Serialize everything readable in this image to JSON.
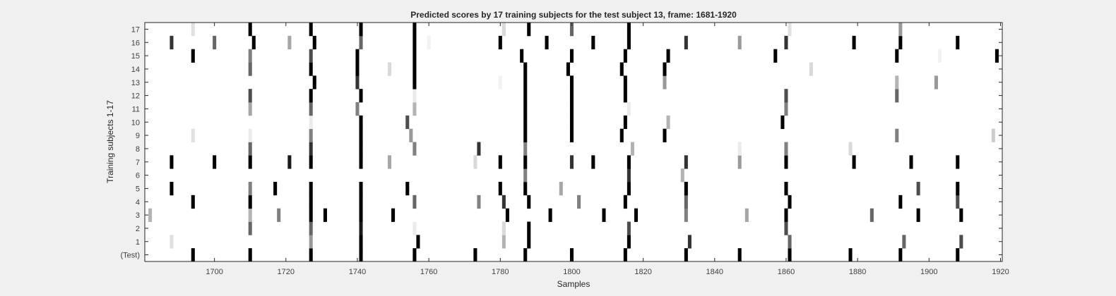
{
  "chart_data": {
    "type": "heatmap",
    "title": "Predicted scores by 17 training subjects for the test subject 13, frame: 1681-1920",
    "xlabel": "Samples",
    "ylabel": "Training subjects 1-17",
    "xlim": [
      1681,
      1920
    ],
    "x_ticks": [
      1700,
      1720,
      1740,
      1760,
      1780,
      1800,
      1820,
      1840,
      1860,
      1880,
      1900,
      1920
    ],
    "rows": [
      "(Test)",
      "1",
      "2",
      "3",
      "4",
      "5",
      "6",
      "7",
      "8",
      "9",
      "10",
      "11",
      "12",
      "13",
      "14",
      "15",
      "16",
      "17"
    ],
    "colormap": "gray (white = 0, black = 1)",
    "grid": false,
    "marks": [
      {
        "row": "(Test)",
        "values": [
          [
            1694,
            1
          ],
          [
            1710,
            1
          ],
          [
            1727,
            1
          ],
          [
            1741,
            1
          ],
          [
            1756,
            1
          ],
          [
            1773,
            1
          ],
          [
            1787,
            1
          ],
          [
            1800,
            1
          ],
          [
            1815,
            1
          ],
          [
            1832,
            1
          ],
          [
            1847,
            1
          ],
          [
            1861,
            1
          ],
          [
            1878,
            1
          ],
          [
            1892,
            1
          ],
          [
            1908,
            1
          ]
        ]
      },
      {
        "row": "1",
        "values": [
          [
            1688,
            0.12
          ],
          [
            1727,
            0.4
          ],
          [
            1741,
            1
          ],
          [
            1757,
            1
          ],
          [
            1781,
            0.3
          ],
          [
            1788,
            1
          ],
          [
            1816,
            1
          ],
          [
            1833,
            0.8
          ],
          [
            1861,
            0.6
          ],
          [
            1893,
            0.6
          ],
          [
            1909,
            0.7
          ]
        ]
      },
      {
        "row": "2",
        "values": [
          [
            1710,
            0.6
          ],
          [
            1727,
            0.6
          ],
          [
            1741,
            0.9
          ],
          [
            1756,
            0.08
          ],
          [
            1781,
            0.15
          ],
          [
            1788,
            1
          ],
          [
            1816,
            0.7
          ],
          [
            1860,
            0.7
          ]
        ]
      },
      {
        "row": "3",
        "values": [
          [
            1682,
            0.3
          ],
          [
            1710,
            0.3
          ],
          [
            1718,
            0.5
          ],
          [
            1727,
            1
          ],
          [
            1731,
            1
          ],
          [
            1741,
            1
          ],
          [
            1750,
            1
          ],
          [
            1782,
            1
          ],
          [
            1794,
            1
          ],
          [
            1809,
            1
          ],
          [
            1818,
            1
          ],
          [
            1832,
            0.5
          ],
          [
            1849,
            0.35
          ],
          [
            1860,
            1
          ],
          [
            1884,
            0.6
          ],
          [
            1897,
            1
          ],
          [
            1909,
            1
          ]
        ]
      },
      {
        "row": "4",
        "values": [
          [
            1694,
            1
          ],
          [
            1710,
            1
          ],
          [
            1727,
            1
          ],
          [
            1741,
            1
          ],
          [
            1756,
            0.6
          ],
          [
            1774,
            0.5
          ],
          [
            1781,
            0.8
          ],
          [
            1788,
            1
          ],
          [
            1802,
            0.5
          ],
          [
            1815,
            1
          ],
          [
            1832,
            0.6
          ],
          [
            1861,
            1
          ],
          [
            1892,
            1
          ],
          [
            1908,
            0.7
          ]
        ]
      },
      {
        "row": "5",
        "values": [
          [
            1688,
            1
          ],
          [
            1710,
            0.5
          ],
          [
            1717,
            1
          ],
          [
            1727,
            1
          ],
          [
            1741,
            1
          ],
          [
            1754,
            1
          ],
          [
            1780,
            1
          ],
          [
            1787,
            1
          ],
          [
            1797,
            0.35
          ],
          [
            1816,
            1
          ],
          [
            1832,
            1
          ],
          [
            1860,
            1
          ],
          [
            1897,
            0.7
          ],
          [
            1908,
            1
          ]
        ]
      },
      {
        "row": "6",
        "values": [
          [
            1787,
            0.5
          ],
          [
            1816,
            0.8
          ],
          [
            1831,
            0.3
          ]
        ]
      },
      {
        "row": "7",
        "values": [
          [
            1688,
            1
          ],
          [
            1700,
            1
          ],
          [
            1710,
            1
          ],
          [
            1721,
            0.9
          ],
          [
            1727,
            1
          ],
          [
            1741,
            1
          ],
          [
            1749,
            0.35
          ],
          [
            1773,
            0.15
          ],
          [
            1780,
            1
          ],
          [
            1787,
            1
          ],
          [
            1800,
            0.8
          ],
          [
            1806,
            1
          ],
          [
            1816,
            1
          ],
          [
            1832,
            0.8
          ],
          [
            1847,
            0.4
          ],
          [
            1860,
            1
          ],
          [
            1879,
            1
          ],
          [
            1895,
            1
          ],
          [
            1908,
            1
          ]
        ]
      },
      {
        "row": "8",
        "values": [
          [
            1710,
            0.6
          ],
          [
            1727,
            0.8
          ],
          [
            1741,
            1
          ],
          [
            1756,
            0.5
          ],
          [
            1774,
            0.8
          ],
          [
            1787,
            0.5
          ],
          [
            1817,
            0.3
          ],
          [
            1847,
            0.08
          ],
          [
            1860,
            0.5
          ],
          [
            1878,
            0.15
          ]
        ]
      },
      {
        "row": "9",
        "values": [
          [
            1694,
            0.12
          ],
          [
            1710,
            0.08
          ],
          [
            1727,
            0.5
          ],
          [
            1741,
            1
          ],
          [
            1755,
            0.4
          ],
          [
            1787,
            1
          ],
          [
            1800,
            1
          ],
          [
            1814,
            1
          ],
          [
            1826,
            1
          ],
          [
            1891,
            0.5
          ],
          [
            1918,
            0.2
          ]
        ]
      },
      {
        "row": "10",
        "values": [
          [
            1727,
            0.08
          ],
          [
            1741,
            1
          ],
          [
            1754,
            0.7
          ],
          [
            1787,
            1
          ],
          [
            1800,
            1
          ],
          [
            1815,
            1
          ],
          [
            1827,
            0.3
          ],
          [
            1859,
            1
          ]
        ]
      },
      {
        "row": "11",
        "values": [
          [
            1710,
            0.35
          ],
          [
            1727,
            0.6
          ],
          [
            1740,
            0.5
          ],
          [
            1756,
            0.3
          ],
          [
            1787,
            1
          ],
          [
            1800,
            1
          ],
          [
            1816,
            0.08
          ],
          [
            1860,
            0.5
          ]
        ]
      },
      {
        "row": "12",
        "values": [
          [
            1710,
            0.7
          ],
          [
            1727,
            1
          ],
          [
            1741,
            1
          ],
          [
            1756,
            0.08
          ],
          [
            1787,
            1
          ],
          [
            1800,
            1
          ],
          [
            1815,
            1
          ],
          [
            1860,
            0.7
          ],
          [
            1891,
            0.6
          ]
        ]
      },
      {
        "row": "13",
        "values": [
          [
            1728,
            1
          ],
          [
            1740,
            0.8
          ],
          [
            1756,
            1
          ],
          [
            1780,
            0.05
          ],
          [
            1787,
            1
          ],
          [
            1800,
            1
          ],
          [
            1815,
            1
          ],
          [
            1826,
            0.4
          ],
          [
            1891,
            0.3
          ],
          [
            1902,
            0.4
          ]
        ]
      },
      {
        "row": "14",
        "values": [
          [
            1710,
            0.6
          ],
          [
            1727,
            1
          ],
          [
            1740,
            1
          ],
          [
            1749,
            0.15
          ],
          [
            1756,
            1
          ],
          [
            1787,
            1
          ],
          [
            1799,
            1
          ],
          [
            1814,
            1
          ],
          [
            1826,
            1
          ],
          [
            1867,
            0.15
          ]
        ]
      },
      {
        "row": "15",
        "values": [
          [
            1694,
            1
          ],
          [
            1710,
            0.5
          ],
          [
            1727,
            0.7
          ],
          [
            1740,
            1
          ],
          [
            1756,
            1
          ],
          [
            1786,
            1
          ],
          [
            1800,
            1
          ],
          [
            1815,
            1
          ],
          [
            1827,
            1
          ],
          [
            1857,
            1
          ],
          [
            1891,
            1
          ],
          [
            1903,
            0.05
          ],
          [
            1919,
            1
          ]
        ]
      },
      {
        "row": "16",
        "values": [
          [
            1688,
            0.8
          ],
          [
            1700,
            0.6
          ],
          [
            1711,
            1
          ],
          [
            1721,
            0.35
          ],
          [
            1728,
            1
          ],
          [
            1741,
            0.6
          ],
          [
            1756,
            1
          ],
          [
            1760,
            0.05
          ],
          [
            1780,
            1
          ],
          [
            1793,
            1
          ],
          [
            1806,
            1
          ],
          [
            1816,
            1
          ],
          [
            1832,
            0.8
          ],
          [
            1847,
            0.4
          ],
          [
            1860,
            0.8
          ],
          [
            1879,
            1
          ],
          [
            1892,
            1
          ],
          [
            1908,
            1
          ]
        ]
      },
      {
        "row": "17",
        "values": [
          [
            1694,
            0.12
          ],
          [
            1710,
            1
          ],
          [
            1727,
            1
          ],
          [
            1741,
            1
          ],
          [
            1756,
            1
          ],
          [
            1781,
            0.15
          ],
          [
            1788,
            1
          ],
          [
            1800,
            0.6
          ],
          [
            1816,
            1
          ],
          [
            1861,
            0.12
          ],
          [
            1892,
            0.4
          ]
        ]
      }
    ]
  }
}
